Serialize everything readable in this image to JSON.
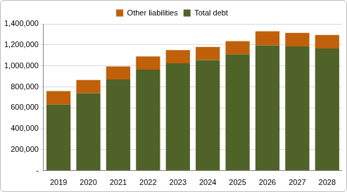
{
  "chart_data": {
    "type": "bar",
    "stacked": true,
    "grid": true,
    "legend": "top",
    "categories": [
      "2019",
      "2020",
      "2021",
      "2022",
      "2023",
      "2024",
      "2025",
      "2026",
      "2027",
      "2028"
    ],
    "series": [
      {
        "name": "Total debt",
        "color": "#4f6228",
        "values": [
          630000,
          740000,
          870000,
          965000,
          1025000,
          1055000,
          1110000,
          1195000,
          1185000,
          1165000
        ]
      },
      {
        "name": "Other liabilities",
        "color": "#c0600a",
        "values": [
          130000,
          125000,
          125000,
          125000,
          125000,
          125000,
          125000,
          135000,
          130000,
          130000
        ]
      }
    ],
    "ylim": [
      0,
      1400000
    ],
    "yticks": [
      {
        "value": 0,
        "label": "-"
      },
      {
        "value": 200000,
        "label": "200,000"
      },
      {
        "value": 400000,
        "label": "400,000"
      },
      {
        "value": 600000,
        "label": "600,000"
      },
      {
        "value": 800000,
        "label": "800,000"
      },
      {
        "value": 1000000,
        "label": "1,000,000"
      },
      {
        "value": 1200000,
        "label": "1,200,000"
      },
      {
        "value": 1400000,
        "label": "1,400,000"
      }
    ]
  }
}
